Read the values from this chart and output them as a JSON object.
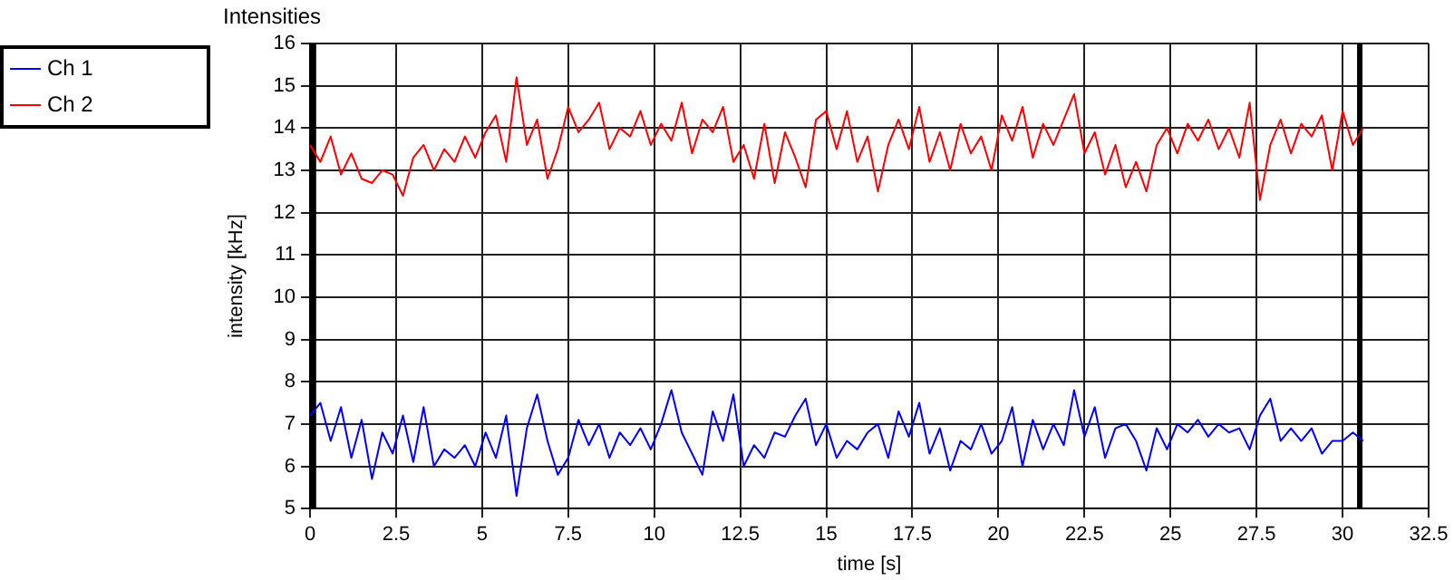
{
  "chart_data": {
    "type": "line",
    "title": "Intensities",
    "xlabel": "time [s]",
    "ylabel": "intensity [kHz]",
    "x": [
      0,
      0.3,
      0.6,
      0.9,
      1.2,
      1.5,
      1.8,
      2.1,
      2.4,
      2.7,
      3.0,
      3.3,
      3.6,
      3.9,
      4.2,
      4.5,
      4.8,
      5.1,
      5.4,
      5.7,
      6.0,
      6.3,
      6.6,
      6.9,
      7.2,
      7.5,
      7.8,
      8.1,
      8.4,
      8.7,
      9.0,
      9.3,
      9.6,
      9.9,
      10.2,
      10.5,
      10.8,
      11.1,
      11.4,
      11.7,
      12.0,
      12.3,
      12.6,
      12.9,
      13.2,
      13.5,
      13.8,
      14.1,
      14.4,
      14.7,
      15.0,
      15.3,
      15.6,
      15.9,
      16.2,
      16.5,
      16.8,
      17.1,
      17.4,
      17.7,
      18.0,
      18.3,
      18.6,
      18.9,
      19.2,
      19.5,
      19.8,
      20.1,
      20.4,
      20.7,
      21.0,
      21.3,
      21.6,
      21.9,
      22.2,
      22.5,
      22.8,
      23.1,
      23.4,
      23.7,
      24.0,
      24.3,
      24.6,
      24.9,
      25.2,
      25.5,
      25.8,
      26.1,
      26.4,
      26.7,
      27.0,
      27.3,
      27.6,
      27.9,
      28.2,
      28.5,
      28.8,
      29.1,
      29.4,
      29.7,
      30.0,
      30.3,
      30.6
    ],
    "series": [
      {
        "name": "Ch 1",
        "color": "#0000ff",
        "values": [
          7.2,
          7.5,
          6.6,
          7.4,
          6.2,
          7.1,
          5.7,
          6.8,
          6.3,
          7.2,
          6.1,
          7.4,
          6.0,
          6.4,
          6.2,
          6.5,
          6.0,
          6.8,
          6.2,
          7.2,
          5.3,
          6.9,
          7.7,
          6.6,
          5.8,
          6.2,
          7.1,
          6.5,
          7.0,
          6.2,
          6.8,
          6.5,
          6.9,
          6.4,
          7.0,
          7.8,
          6.8,
          6.3,
          5.8,
          7.3,
          6.6,
          7.7,
          6.0,
          6.5,
          6.2,
          6.8,
          6.7,
          7.2,
          7.6,
          6.5,
          7.0,
          6.2,
          6.6,
          6.4,
          6.8,
          7.0,
          6.2,
          7.3,
          6.7,
          7.5,
          6.3,
          6.9,
          5.9,
          6.6,
          6.4,
          7.0,
          6.3,
          6.6,
          7.4,
          6.0,
          7.1,
          6.4,
          7.0,
          6.5,
          7.8,
          6.7,
          7.4,
          6.2,
          6.9,
          7.0,
          6.6,
          5.9,
          6.9,
          6.4,
          7.0,
          6.8,
          7.1,
          6.7,
          7.0,
          6.8,
          6.9,
          6.4,
          7.2,
          7.6,
          6.6,
          6.9,
          6.6,
          6.9,
          6.3,
          6.6,
          6.6,
          6.8,
          6.6
        ]
      },
      {
        "name": "Ch 2",
        "color": "#ff0000",
        "values": [
          13.6,
          13.2,
          13.8,
          12.9,
          13.4,
          12.8,
          12.7,
          13.0,
          12.9,
          12.4,
          13.3,
          13.6,
          13.0,
          13.5,
          13.2,
          13.8,
          13.3,
          13.9,
          14.3,
          13.2,
          15.2,
          13.6,
          14.2,
          12.8,
          13.5,
          14.5,
          13.9,
          14.2,
          14.6,
          13.5,
          14.0,
          13.8,
          14.4,
          13.6,
          14.1,
          13.7,
          14.6,
          13.4,
          14.2,
          13.9,
          14.5,
          13.2,
          13.6,
          12.8,
          14.1,
          12.7,
          13.9,
          13.3,
          12.6,
          14.2,
          14.4,
          13.5,
          14.4,
          13.2,
          13.8,
          12.5,
          13.6,
          14.2,
          13.5,
          14.5,
          13.2,
          13.9,
          13.0,
          14.1,
          13.4,
          13.8,
          13.0,
          14.3,
          13.7,
          14.5,
          13.3,
          14.1,
          13.6,
          14.2,
          14.8,
          13.4,
          13.9,
          12.9,
          13.6,
          12.6,
          13.2,
          12.5,
          13.6,
          14.0,
          13.4,
          14.1,
          13.7,
          14.2,
          13.5,
          14.0,
          13.3,
          14.6,
          12.3,
          13.6,
          14.2,
          13.4,
          14.1,
          13.8,
          14.3,
          13.0,
          14.4,
          13.6,
          14.0
        ]
      }
    ],
    "xlim": [
      0,
      32.5
    ],
    "xticks": [
      0,
      2.5,
      5,
      7.5,
      10,
      12.5,
      15,
      17.5,
      20,
      22.5,
      25,
      27.5,
      30,
      32.5
    ],
    "ylim": [
      5,
      16
    ],
    "yticks": [
      5,
      6,
      7,
      8,
      9,
      10,
      11,
      12,
      13,
      14,
      15,
      16
    ],
    "ref_lines": [
      {
        "axis": "x",
        "value": 0.1,
        "color": "#000000"
      },
      {
        "axis": "x",
        "value": 30.5,
        "color": "#000000"
      }
    ],
    "grid": true,
    "legend": "top left",
    "marker": "none",
    "line_style": "solid"
  }
}
